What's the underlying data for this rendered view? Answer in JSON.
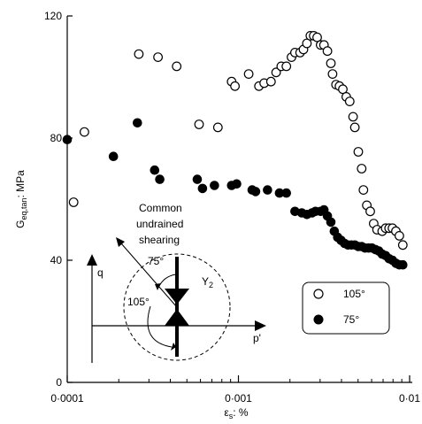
{
  "chart_data": {
    "type": "scatter",
    "xscale": "log",
    "xlim": [
      0.0001,
      0.01
    ],
    "ylim": [
      0,
      120
    ],
    "xticks": [
      {
        "value": 0.0001,
        "label": "0·0001"
      },
      {
        "value": 0.001,
        "label": "0·001"
      },
      {
        "value": 0.01,
        "label": "0·01"
      }
    ],
    "yticks": [
      {
        "value": 0,
        "label": "0"
      },
      {
        "value": 40,
        "label": "40"
      },
      {
        "value": 80,
        "label": "80"
      },
      {
        "value": 120,
        "label": "120"
      }
    ],
    "xlabel": {
      "main": "ε",
      "sub": "s",
      "rest": ": %"
    },
    "ylabel": {
      "main": "G",
      "sub": "eq,tan",
      "rest": ": MPa"
    },
    "legend": {
      "placement": "bottom-right",
      "entries": [
        {
          "label": "105°",
          "marker": "open-circle"
        },
        {
          "label": "75°",
          "marker": "filled-circle"
        }
      ]
    },
    "series": [
      {
        "marker": "open-circle",
        "points": [
          [
            0.000109,
            59
          ],
          [
            0.000126,
            82
          ],
          [
            0.000262,
            107.5
          ],
          [
            0.000339,
            106.5
          ],
          [
            0.000436,
            103.5
          ],
          [
            0.000589,
            84.5
          ],
          [
            0.000759,
            83.5
          ],
          [
            0.000912,
            98.5
          ],
          [
            0.000955,
            97
          ],
          [
            0.001148,
            101
          ],
          [
            0.001318,
            97
          ],
          [
            0.001413,
            98
          ],
          [
            0.001549,
            98.5
          ],
          [
            0.00166,
            101.5
          ],
          [
            0.001778,
            103.5
          ],
          [
            0.001905,
            103.5
          ],
          [
            0.002042,
            106.5
          ],
          [
            0.002138,
            108
          ],
          [
            0.002291,
            108
          ],
          [
            0.002399,
            109
          ],
          [
            0.002512,
            111
          ],
          [
            0.00263,
            113.5
          ],
          [
            0.002754,
            113.5
          ],
          [
            0.002884,
            113
          ],
          [
            0.00302,
            110.5
          ],
          [
            0.003162,
            110.5
          ],
          [
            0.003311,
            108.5
          ],
          [
            0.003467,
            104.5
          ],
          [
            0.003548,
            101
          ],
          [
            0.003715,
            97.5
          ],
          [
            0.00389,
            97
          ],
          [
            0.004074,
            96
          ],
          [
            0.004266,
            93.5
          ],
          [
            0.004467,
            92
          ],
          [
            0.004677,
            87
          ],
          [
            0.004786,
            83.5
          ],
          [
            0.005012,
            75.5
          ],
          [
            0.005248,
            70
          ],
          [
            0.00537,
            63
          ],
          [
            0.005623,
            58
          ],
          [
            0.005888,
            56
          ],
          [
            0.006166,
            52
          ],
          [
            0.006457,
            50
          ],
          [
            0.006918,
            49.5
          ],
          [
            0.007244,
            50.5
          ],
          [
            0.007586,
            50.5
          ],
          [
            0.007943,
            50.5
          ],
          [
            0.008318,
            49.5
          ],
          [
            0.00871,
            48
          ],
          [
            0.00912,
            45
          ]
        ]
      },
      {
        "marker": "filled-circle",
        "points": [
          [
            0.0001,
            79.5
          ],
          [
            0.000186,
            74
          ],
          [
            0.000257,
            85
          ],
          [
            0.000324,
            69.5
          ],
          [
            0.000347,
            66.5
          ],
          [
            0.000575,
            66.5
          ],
          [
            0.000617,
            63.5
          ],
          [
            0.000724,
            64.5
          ],
          [
            0.000912,
            64.5
          ],
          [
            0.000977,
            65
          ],
          [
            0.001202,
            63
          ],
          [
            0.001259,
            62.5
          ],
          [
            0.001479,
            63
          ],
          [
            0.001738,
            62
          ],
          [
            0.001905,
            62
          ],
          [
            0.002138,
            56
          ],
          [
            0.002344,
            55.5
          ],
          [
            0.002512,
            55
          ],
          [
            0.002692,
            55.5
          ],
          [
            0.002818,
            56
          ],
          [
            0.00302,
            56
          ],
          [
            0.003162,
            56.5
          ],
          [
            0.003311,
            54.5
          ],
          [
            0.003467,
            52.5
          ],
          [
            0.003631,
            49.5
          ],
          [
            0.003802,
            47.5
          ],
          [
            0.003981,
            46.5
          ],
          [
            0.004169,
            45.5
          ],
          [
            0.004365,
            45
          ],
          [
            0.004571,
            45
          ],
          [
            0.004786,
            45
          ],
          [
            0.005012,
            44.5
          ],
          [
            0.005248,
            44.5
          ],
          [
            0.005495,
            44
          ],
          [
            0.005754,
            44
          ],
          [
            0.006026,
            44
          ],
          [
            0.00631,
            43.5
          ],
          [
            0.006607,
            43
          ],
          [
            0.006918,
            42
          ],
          [
            0.007244,
            41.5
          ],
          [
            0.007586,
            40.5
          ],
          [
            0.007943,
            40
          ],
          [
            0.008318,
            39
          ],
          [
            0.00871,
            38.5
          ],
          [
            0.00912,
            38.5
          ]
        ]
      }
    ]
  },
  "inset": {
    "title_line1": "Common",
    "title_line2": "undrained",
    "title_line3": "shearing",
    "q_axis_label": "q",
    "p_axis_label": "p'",
    "angle_small": "75°",
    "angle_large": "105°",
    "yield_label_main": "Y",
    "yield_label_sub": "2"
  }
}
